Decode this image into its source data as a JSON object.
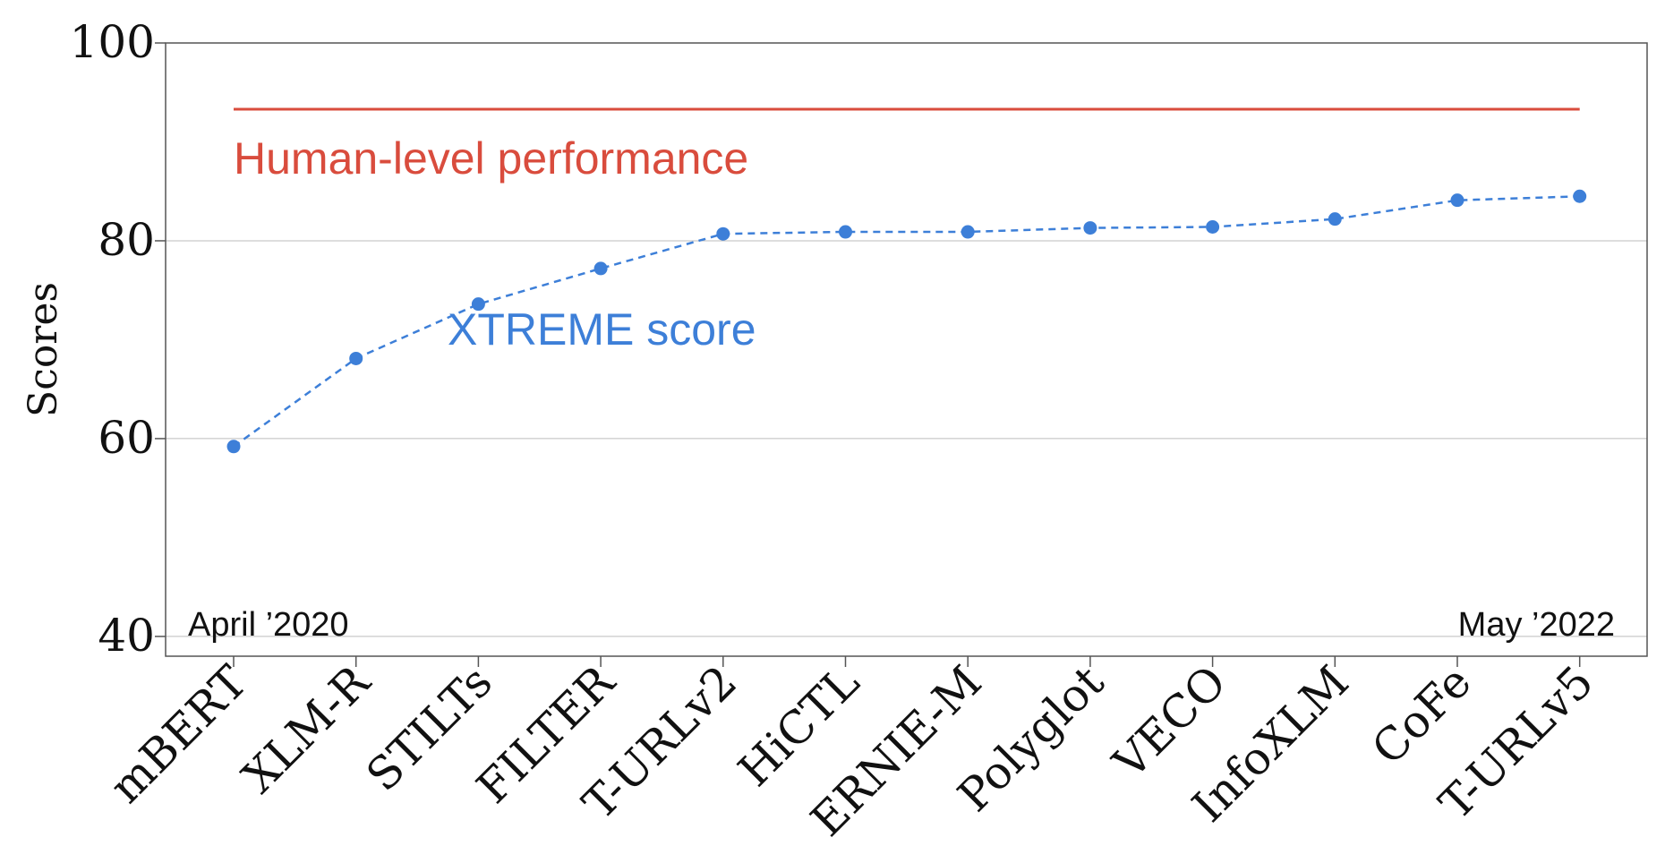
{
  "chart_data": {
    "type": "line",
    "categories": [
      "mBERT",
      "XLM-R",
      "STILTs",
      "FILTER",
      "T-URLv2",
      "HiCTL",
      "ERNIE-M",
      "Polyglot",
      "VECO",
      "InfoXLM",
      "CoFe",
      "T-URLv5"
    ],
    "series": [
      {
        "name": "XTREME score",
        "values": [
          59.2,
          68.1,
          73.6,
          77.2,
          80.7,
          80.9,
          80.9,
          81.3,
          81.4,
          82.2,
          84.1,
          84.5
        ],
        "color": "#3d7fd8",
        "style": "dashed",
        "marker": "circle"
      }
    ],
    "reference_line": {
      "label": "Human-level performance",
      "value": 93.3,
      "color": "#d94c3d"
    },
    "ylabel": "Scores",
    "xlabel": "",
    "title": "",
    "ylim": [
      38,
      100
    ],
    "yticks": [
      40,
      60,
      80,
      100
    ],
    "grid": "y-major",
    "annotations": {
      "start": "April ’2020",
      "end": "May ’2022"
    }
  }
}
